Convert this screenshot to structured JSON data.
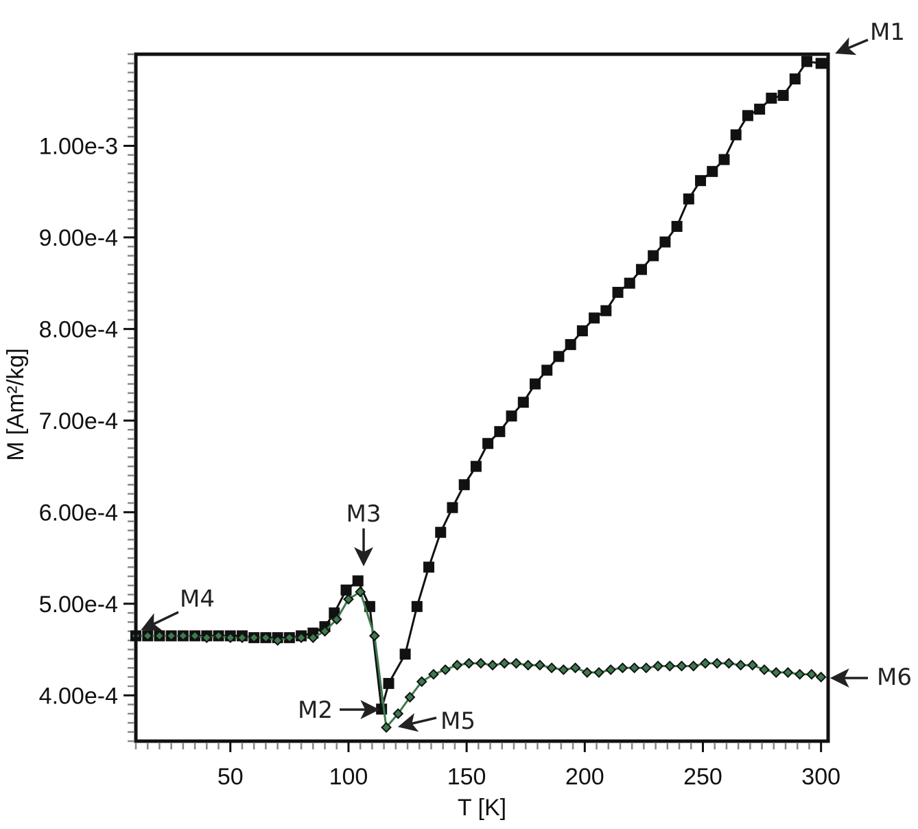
{
  "chart_data": {
    "type": "line",
    "title": "",
    "xlabel": "T [K]",
    "ylabel": "M [Am²/kg]",
    "xlim": [
      10,
      303
    ],
    "ylim": [
      0.00035,
      0.0011
    ],
    "xticks": [
      50,
      100,
      150,
      200,
      250,
      300
    ],
    "xtick_labels": [
      "50",
      "100",
      "150",
      "200",
      "250",
      "300"
    ],
    "yticks": [
      0.0004,
      0.0005,
      0.0006,
      0.0007,
      0.0008,
      0.0009,
      0.001
    ],
    "ytick_labels": [
      "4.00e-4",
      "5.00e-4",
      "6.00e-4",
      "7.00e-4",
      "8.00e-4",
      "9.00e-4",
      "1.00e-3"
    ],
    "grid": false,
    "legend": "none",
    "series": [
      {
        "color": "#111111",
        "marker": "square",
        "x": [
          10,
          15,
          20,
          25,
          30,
          35,
          40,
          45,
          50,
          55,
          60,
          65,
          70,
          75,
          80,
          85,
          90,
          94,
          99,
          104,
          109,
          114,
          117,
          124,
          129,
          134,
          139,
          144,
          149,
          154,
          159,
          164,
          169,
          174,
          179,
          184,
          189,
          194,
          199,
          204,
          209,
          214,
          219,
          224,
          229,
          234,
          239,
          244,
          249,
          254,
          259,
          264,
          269,
          274,
          279,
          284,
          289,
          294,
          300
        ],
        "y": [
          0.000465,
          0.000465,
          0.000465,
          0.000465,
          0.000465,
          0.000465,
          0.000465,
          0.000465,
          0.000465,
          0.000465,
          0.000463,
          0.000463,
          0.000463,
          0.000463,
          0.000465,
          0.000468,
          0.000475,
          0.00049,
          0.000515,
          0.000525,
          0.000497,
          0.000385,
          0.000413,
          0.000445,
          0.000497,
          0.00054,
          0.000578,
          0.000605,
          0.00063,
          0.00065,
          0.000675,
          0.000688,
          0.000705,
          0.00072,
          0.00074,
          0.000755,
          0.00077,
          0.000783,
          0.000798,
          0.000812,
          0.00082,
          0.00084,
          0.00085,
          0.000865,
          0.00088,
          0.000895,
          0.000912,
          0.000942,
          0.000962,
          0.000972,
          0.000985,
          0.001012,
          0.001033,
          0.00104,
          0.001052,
          0.001055,
          0.001073,
          0.001092,
          0.00109
        ]
      },
      {
        "color": "#3d7a4d",
        "marker": "diamond",
        "x": [
          10,
          15,
          20,
          25,
          30,
          35,
          40,
          45,
          50,
          55,
          60,
          65,
          70,
          75,
          80,
          85,
          90,
          95,
          100,
          105,
          111,
          116,
          121,
          126,
          131,
          136,
          141,
          146,
          151,
          156,
          161,
          166,
          171,
          176,
          181,
          186,
          191,
          196,
          201,
          206,
          211,
          216,
          221,
          226,
          231,
          236,
          241,
          246,
          251,
          256,
          261,
          266,
          271,
          276,
          281,
          286,
          291,
          296,
          300
        ],
        "y": [
          0.000465,
          0.000465,
          0.000465,
          0.000465,
          0.000465,
          0.000465,
          0.000463,
          0.000465,
          0.000463,
          0.000463,
          0.000463,
          0.000463,
          0.00046,
          0.000463,
          0.000463,
          0.000463,
          0.00047,
          0.000483,
          0.000505,
          0.000513,
          0.000465,
          0.000365,
          0.00038,
          0.000398,
          0.000415,
          0.000423,
          0.000428,
          0.000433,
          0.000435,
          0.000435,
          0.000433,
          0.000435,
          0.000435,
          0.000433,
          0.000433,
          0.00043,
          0.000428,
          0.00043,
          0.000425,
          0.000425,
          0.000428,
          0.00043,
          0.00043,
          0.00043,
          0.000432,
          0.000432,
          0.000432,
          0.000432,
          0.000435,
          0.000435,
          0.000435,
          0.000433,
          0.000433,
          0.000428,
          0.000425,
          0.000425,
          0.000423,
          0.000423,
          0.00042
        ]
      }
    ],
    "annotations": [
      {
        "label": "M1",
        "x": 300,
        "y": 0.00109
      },
      {
        "label": "M2",
        "x": 114,
        "y": 0.000385
      },
      {
        "label": "M3",
        "x": 104,
        "y": 0.000525
      },
      {
        "label": "M4",
        "x": 10,
        "y": 0.000465
      },
      {
        "label": "M5",
        "x": 116,
        "y": 0.000365
      },
      {
        "label": "M6",
        "x": 300,
        "y": 0.00042
      }
    ]
  }
}
